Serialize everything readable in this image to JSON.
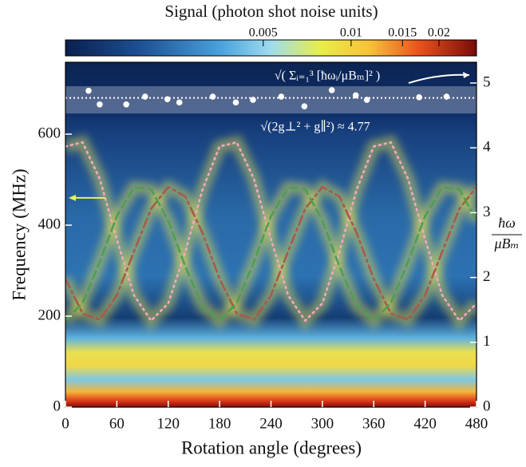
{
  "chart_data": {
    "type": "line",
    "xlabel": "Rotation angle (degrees)",
    "ylabel": "Frequency (MHz)",
    "y2label": {
      "numerator": "ħω",
      "denominator": "μBₘ"
    },
    "xlim": [
      0,
      480
    ],
    "xticks": [
      0,
      60,
      120,
      180,
      240,
      300,
      360,
      420,
      480
    ],
    "ylim": [
      0,
      758
    ],
    "yticks": [
      0,
      200,
      400,
      600
    ],
    "y2lim": [
      0,
      5.32
    ],
    "y2ticks": [
      0,
      1,
      2,
      3,
      4,
      5
    ],
    "colorbar": {
      "label": "Signal (photon shot noise units)",
      "scale": "log",
      "lim": [
        0.00105,
        0.0269
      ],
      "ticks": [
        0.005,
        0.01,
        0.015,
        0.02
      ]
    },
    "x": [
      0,
      20,
      40,
      60,
      80,
      100,
      120,
      140,
      160,
      180,
      200,
      220,
      240,
      260,
      280,
      300,
      320,
      340,
      360,
      380,
      400,
      420,
      440,
      460,
      480
    ],
    "series": [
      {
        "color": "#f2a6c8",
        "style": "dotted",
        "values": [
          573,
          582,
          502,
          369,
          246,
          190,
          228,
          342,
          478,
          573,
          582,
          502,
          369,
          246,
          190,
          228,
          342,
          478,
          573,
          582,
          502,
          369,
          246,
          190,
          228
        ]
      },
      {
        "color": "#a65a4c",
        "style": "dashdot",
        "values": [
          282,
          206,
          192,
          246,
          342,
          436,
          484,
          463,
          383,
          282,
          206,
          192,
          246,
          342,
          436,
          484,
          463,
          383,
          282,
          206,
          192,
          246,
          342,
          436,
          484
        ]
      },
      {
        "color": "#4f9e50",
        "style": "dashed",
        "values": [
          190,
          229,
          319,
          420,
          483,
          479,
          410,
          309,
          222,
          190,
          229,
          319,
          420,
          483,
          479,
          410,
          309,
          222,
          190,
          229,
          319,
          420,
          483,
          479,
          410
        ]
      }
    ],
    "points": {
      "axis": "y2",
      "color": "#ffffff",
      "x": [
        27,
        40,
        71,
        93,
        119,
        133,
        172,
        199,
        219,
        252,
        279,
        311,
        339,
        352,
        413,
        445
      ],
      "y": [
        4.88,
        4.67,
        4.67,
        4.79,
        4.75,
        4.7,
        4.79,
        4.7,
        4.74,
        4.79,
        4.64,
        4.89,
        4.81,
        4.74,
        4.78,
        4.79
      ]
    },
    "reference": {
      "value": 4.77,
      "band": [
        4.53,
        4.95
      ],
      "label": "√(2g⊥² + g∥²) ≈ 4.77"
    },
    "top_annotation": "√( Σᵢ₌₁³ [ħωᵢ/μBₘ]² )",
    "left_arrow": {
      "value": 460,
      "color": "#e6f25a"
    }
  }
}
